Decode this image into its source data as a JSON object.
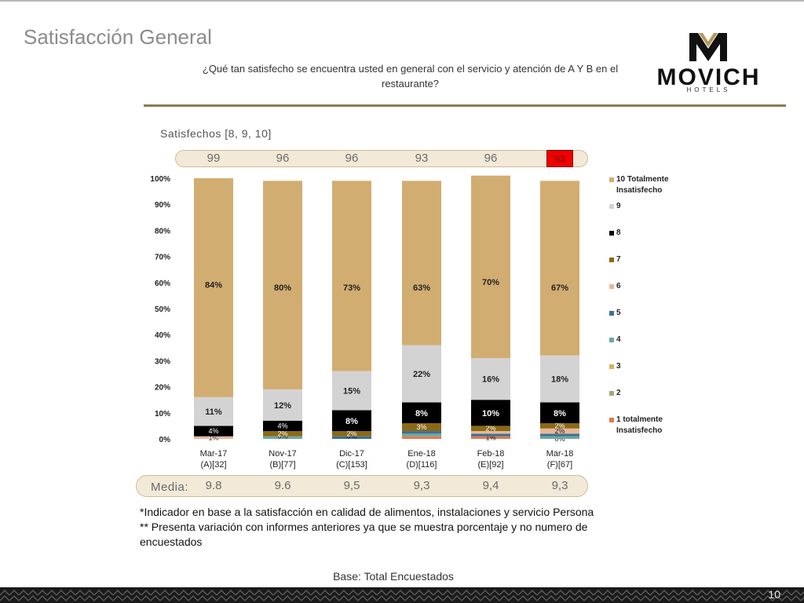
{
  "header": {
    "title": "Satisfacción General",
    "question": "¿Qué tan satisfecho se encuentra usted en general con el servicio y atención de A Y B en el restaurante?"
  },
  "logo": {
    "word": "MOVICH",
    "sub": "HOTELS"
  },
  "satisfied": {
    "label": "Satisfechos [8, 9, 10]",
    "values": [
      "99",
      "96",
      "96",
      "93",
      "96",
      "93"
    ],
    "highlight_index": 5,
    "highlight_color": "#ee0000"
  },
  "colors": {
    "accent_gold": "#8b7a55",
    "band_fill": "#f2e9d8"
  },
  "chart_data": {
    "type": "bar",
    "stacked": true,
    "categories": [
      "Mar-17\n(A)[32]",
      "Nov-17\n(B)[77]",
      "Dic-17\n(C)[153]",
      "Ene-18\n(D)[116]",
      "Feb-18\n(E)[92]",
      "Mar-18\n(F)[67]"
    ],
    "ylim": [
      0,
      100
    ],
    "yticks": [
      "0%",
      "10%",
      "20%",
      "30%",
      "40%",
      "50%",
      "60%",
      "70%",
      "80%",
      "90%",
      "100%"
    ],
    "legend_position": "right",
    "series": [
      {
        "name": "1 totalmente Insatisfecho",
        "color": "#e07a50",
        "values": [
          0,
          0,
          0,
          1,
          1,
          0
        ],
        "labels": [
          "",
          "",
          "",
          "",
          "1%",
          "0%"
        ]
      },
      {
        "name": "2",
        "color": "#9aab7a",
        "values": [
          0,
          0,
          0,
          0,
          0,
          0
        ],
        "labels": [
          "",
          "",
          "",
          "",
          "",
          ""
        ]
      },
      {
        "name": "3",
        "color": "#d8b35a",
        "values": [
          0,
          0,
          0,
          0,
          0,
          0
        ],
        "labels": [
          "",
          "",
          "",
          "",
          "",
          ""
        ]
      },
      {
        "name": "4",
        "color": "#6ea8a0",
        "values": [
          0,
          1,
          0,
          1,
          0,
          1
        ],
        "labels": [
          "",
          "",
          "",
          "",
          "",
          ""
        ]
      },
      {
        "name": "5",
        "color": "#3d6f96",
        "values": [
          0,
          0,
          1,
          1,
          1,
          1
        ],
        "labels": [
          "",
          "",
          "",
          "",
          "",
          ""
        ]
      },
      {
        "name": "6",
        "color": "#e8b89a",
        "values": [
          1,
          0,
          0,
          0,
          1,
          2
        ],
        "labels": [
          "1%",
          "0%",
          "0%",
          "",
          "",
          "2%"
        ]
      },
      {
        "name": "7",
        "color": "#8b6914",
        "values": [
          0,
          2,
          2,
          3,
          2,
          2
        ],
        "labels": [
          "0%",
          "2%",
          "2%",
          "3%",
          "2%",
          "2%"
        ]
      },
      {
        "name": "8",
        "color": "#000000",
        "values": [
          4,
          4,
          8,
          8,
          10,
          8
        ],
        "labels": [
          "4%",
          "4%",
          "8%",
          "8%",
          "10%",
          "8%"
        ]
      },
      {
        "name": "9",
        "color": "#d4d3d4",
        "values": [
          11,
          12,
          15,
          22,
          16,
          18
        ],
        "labels": [
          "11%",
          "12%",
          "15%",
          "22%",
          "16%",
          "18%"
        ]
      },
      {
        "name": "10 Totalmente Insatisfecho",
        "color": "#d2ad71",
        "values": [
          84,
          80,
          73,
          63,
          70,
          67
        ],
        "labels": [
          "84%",
          "80%",
          "73%",
          "63%",
          "70%",
          "67%"
        ]
      }
    ]
  },
  "media": {
    "label": "Media:",
    "values": [
      "9.8",
      "9.6",
      "9,5",
      "9,3",
      "9,4",
      "9,3"
    ]
  },
  "notes": [
    "*Indicador en base a la satisfacción en calidad de alimentos, instalaciones y servicio Persona",
    "** Presenta variación con informes anteriores ya que se muestra porcentaje y no numero de encuestados"
  ],
  "base": "Base: Total Encuestados",
  "page_number": "10"
}
